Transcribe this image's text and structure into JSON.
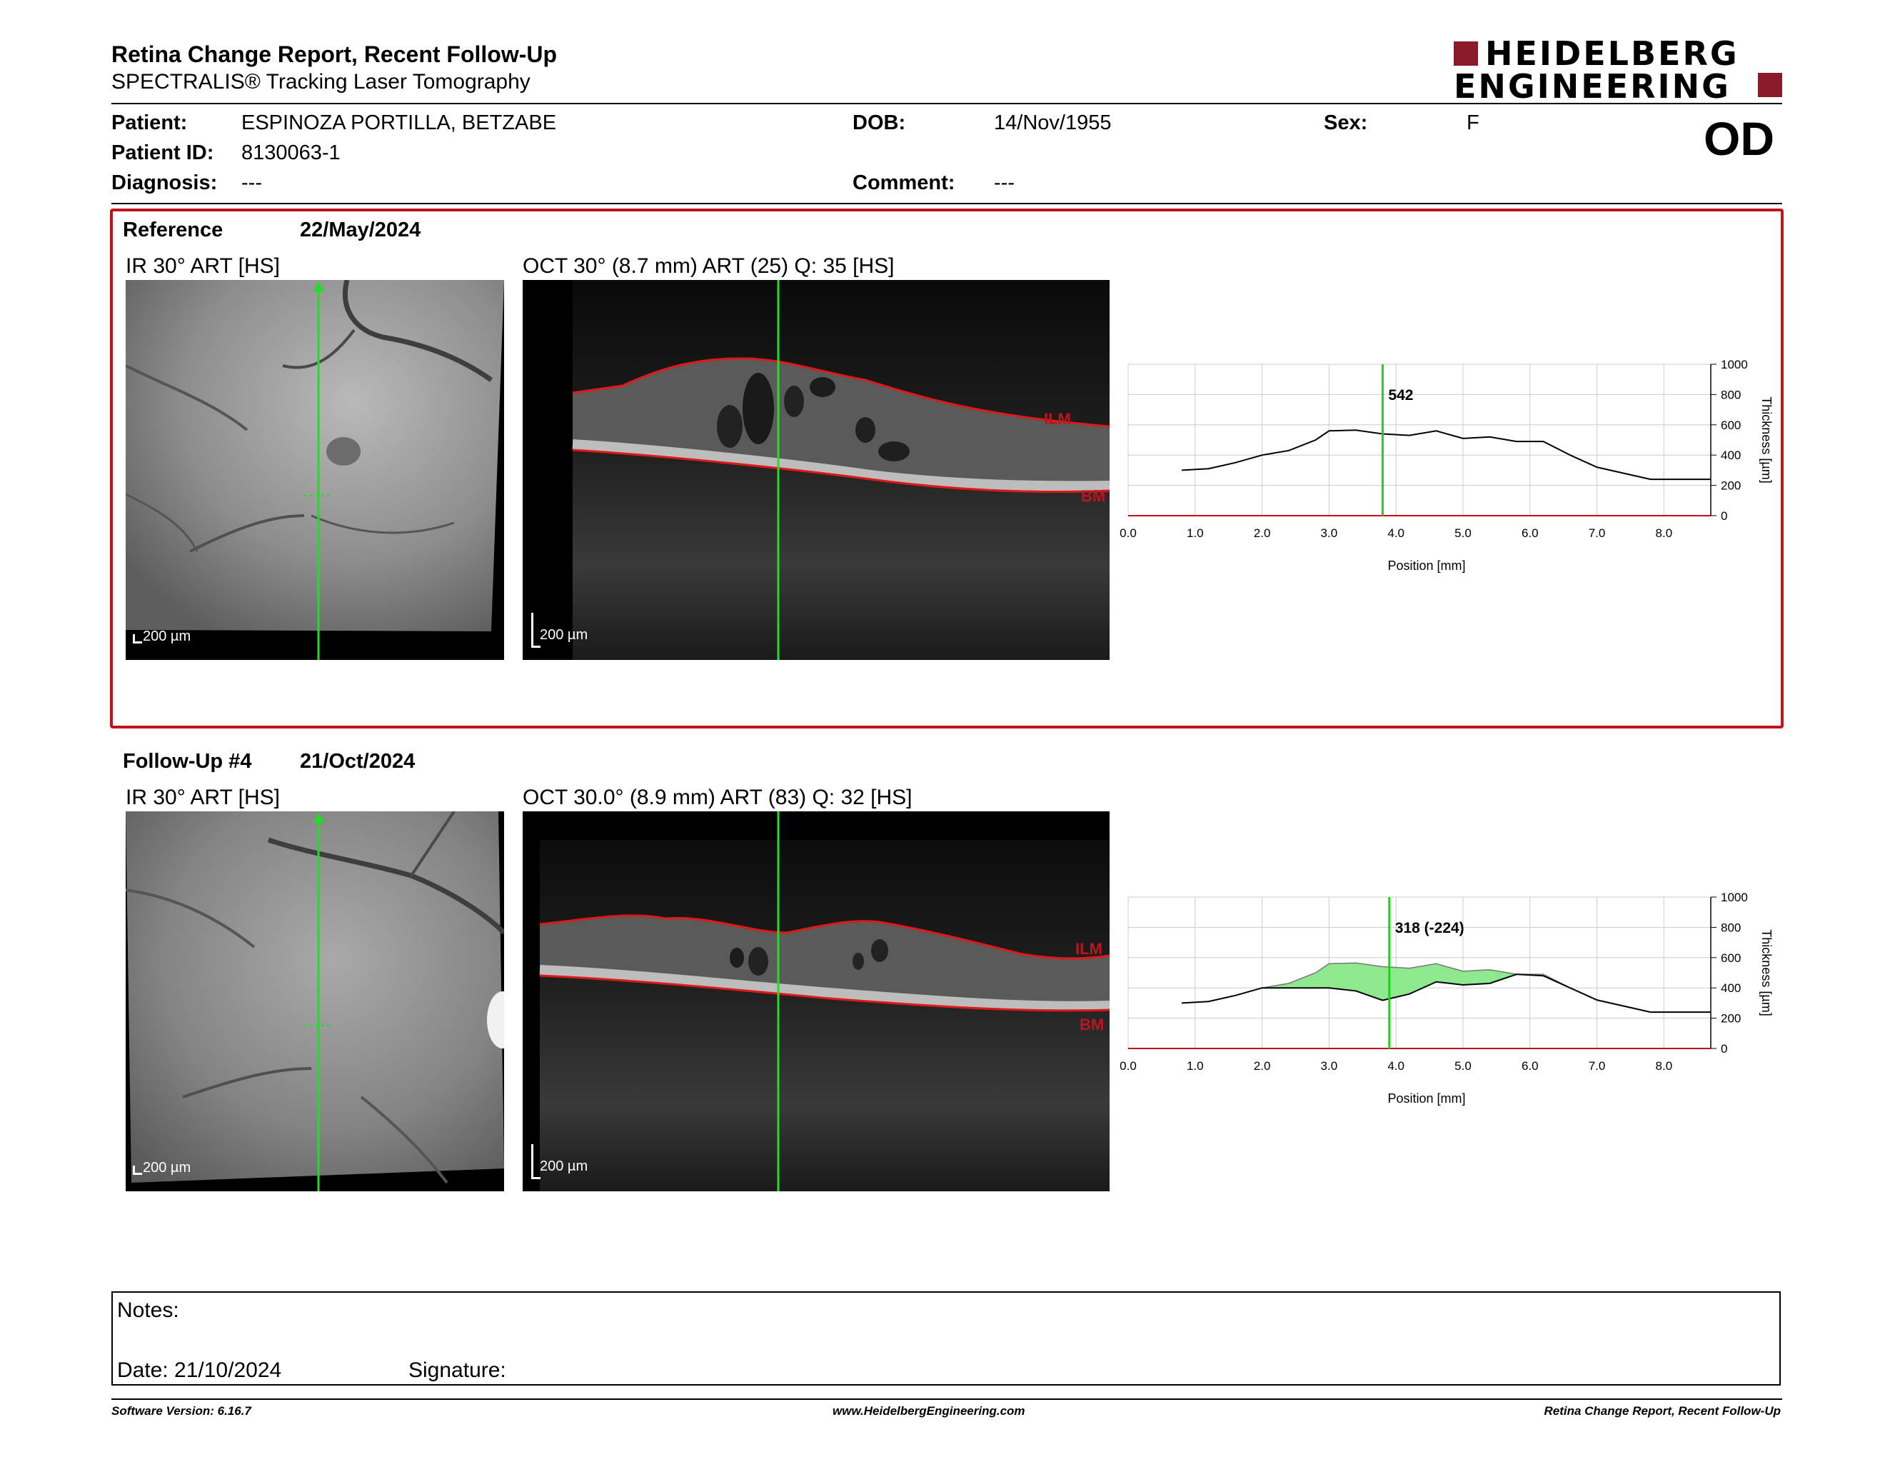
{
  "report": {
    "title": "Retina Change Report, Recent Follow-Up",
    "subtitle": "SPECTRALIS® Tracking Laser Tomography"
  },
  "logo": {
    "line1": "HEIDELBERG",
    "line2": "ENGINEERING",
    "color": "#8b1a2b"
  },
  "patient": {
    "name_label": "Patient:",
    "name": "ESPINOZA PORTILLA, BETZABE",
    "id_label": "Patient ID:",
    "id": "8130063-1",
    "diagnosis_label": "Diagnosis:",
    "diagnosis": "---",
    "dob_label": "DOB:",
    "dob": "14/Nov/1955",
    "comment_label": "Comment:",
    "comment": "---",
    "sex_label": "Sex:",
    "sex": "F",
    "eye": "OD"
  },
  "reference": {
    "label": "Reference",
    "date": "22/May/2024",
    "ir_title": "IR 30° ART [HS]",
    "oct_title": "OCT 30° (8.7 mm) ART (25) Q: 35 [HS]",
    "scale_ir": "200 µm",
    "scale_oct": "200 µm",
    "ilm": "ILM",
    "bm": "BM",
    "marker_value": "542"
  },
  "followup": {
    "label": "Follow-Up #4",
    "date": "21/Oct/2024",
    "ir_title": "IR 30° ART [HS]",
    "oct_title": "OCT 30.0° (8.9 mm) ART (83) Q: 32 [HS]",
    "scale_ir": "200 µm",
    "scale_oct": "200 µm",
    "ilm": "ILM",
    "bm": "BM",
    "marker_value": "318 (-224)"
  },
  "chart_data": [
    {
      "type": "line",
      "xlabel": "Position [mm]",
      "ylabel": "Thickness [µm]",
      "xlim": [
        0,
        8.7
      ],
      "ylim": [
        0,
        1000
      ],
      "xticks": [
        "0.0",
        "1.0",
        "2.0",
        "3.0",
        "4.0",
        "5.0",
        "6.0",
        "7.0",
        "8.0"
      ],
      "yticks": [
        "1000",
        "800",
        "600",
        "400",
        "200",
        "0"
      ],
      "marker_x": 3.8,
      "marker_label": "542",
      "series": [
        {
          "x": [
            0.8,
            1.2,
            1.6,
            2.0,
            2.4,
            2.8,
            3.0,
            3.4,
            3.8,
            4.2,
            4.6,
            5.0,
            5.4,
            5.8,
            6.2,
            6.6,
            7.0,
            7.4,
            7.8,
            8.2,
            8.7
          ],
          "values": [
            300,
            310,
            350,
            400,
            430,
            500,
            560,
            565,
            540,
            530,
            560,
            510,
            520,
            490,
            490,
            400,
            320,
            280,
            240,
            240,
            240
          ]
        }
      ]
    },
    {
      "type": "area",
      "xlabel": "Position [mm]",
      "ylabel": "Thickness [µm]",
      "xlim": [
        0,
        8.7
      ],
      "ylim": [
        0,
        1000
      ],
      "xticks": [
        "0.0",
        "1.0",
        "2.0",
        "3.0",
        "4.0",
        "5.0",
        "6.0",
        "7.0",
        "8.0"
      ],
      "yticks": [
        "1000",
        "800",
        "600",
        "400",
        "200",
        "0"
      ],
      "marker_x": 3.9,
      "marker_label": "318 (-224)",
      "series": [
        {
          "x": [
            0.8,
            1.2,
            1.6,
            2.0,
            2.4,
            2.8,
            3.0,
            3.4,
            3.8,
            4.2,
            4.6,
            5.0,
            5.4,
            5.8,
            6.2,
            6.6,
            7.0,
            7.4,
            7.8,
            8.2,
            8.7
          ],
          "values": [
            300,
            310,
            350,
            400,
            400,
            400,
            400,
            380,
            318,
            360,
            440,
            420,
            430,
            490,
            480,
            400,
            320,
            280,
            240,
            240,
            240
          ]
        },
        {
          "x": [
            0.8,
            1.2,
            1.6,
            2.0,
            2.4,
            2.8,
            3.0,
            3.4,
            3.8,
            4.2,
            4.6,
            5.0,
            5.4,
            5.8,
            6.2,
            6.6,
            7.0,
            7.4,
            7.8,
            8.2,
            8.7
          ],
          "values": [
            300,
            310,
            350,
            400,
            430,
            500,
            560,
            565,
            540,
            530,
            560,
            510,
            520,
            490,
            490,
            400,
            320,
            280,
            240,
            240,
            240
          ]
        }
      ]
    }
  ],
  "notes": {
    "notes_label": "Notes:",
    "date_label": "Date: 21/10/2024",
    "signature_label": "Signature:"
  },
  "footer": {
    "software": "Software Version: 6.16.7",
    "website": "www.HeidelbergEngineering.com",
    "report_name": "Retina Change Report, Recent Follow-Up"
  }
}
